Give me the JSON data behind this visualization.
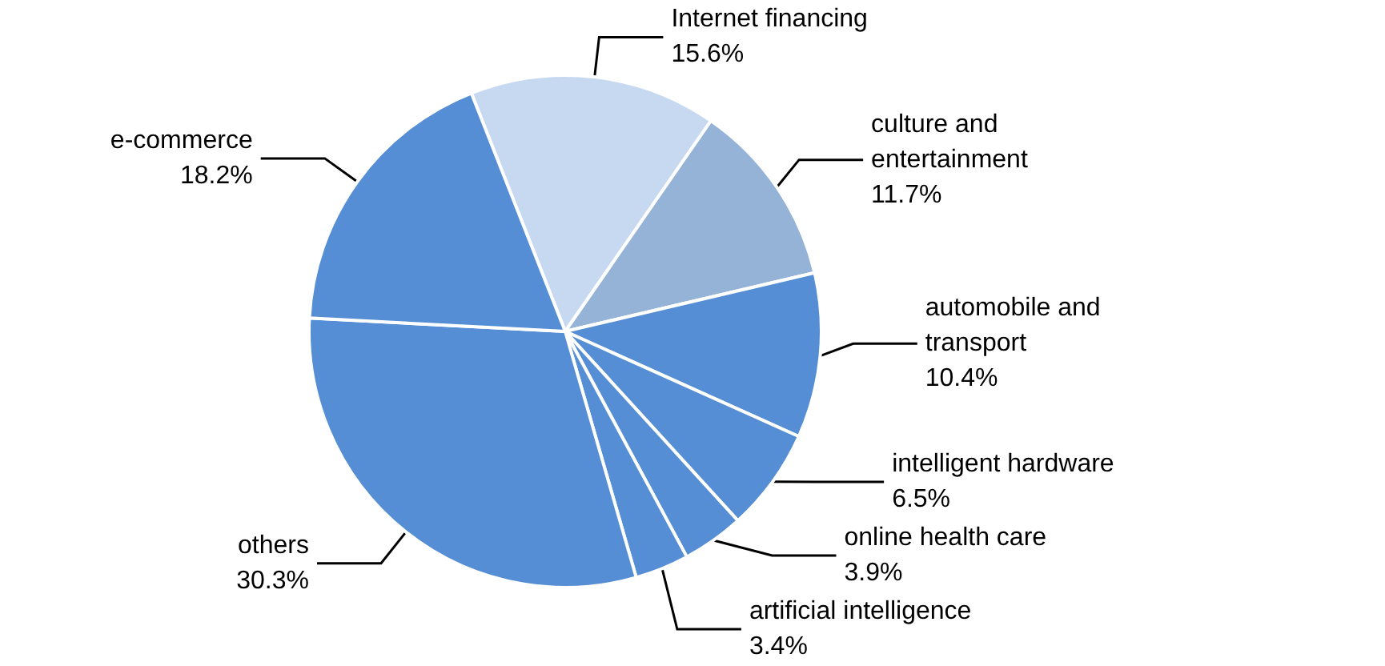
{
  "chart_data": {
    "type": "pie",
    "categories": [
      "Internet financing",
      "culture and entertainment",
      "automobile and transport",
      "intelligent hardware",
      "online health care",
      "artificial intelligence",
      "others",
      "e-commerce"
    ],
    "values": [
      15.6,
      11.7,
      10.4,
      6.5,
      3.9,
      3.4,
      30.3,
      18.2
    ],
    "value_labels": [
      "15.6%",
      "11.7%",
      "10.4%",
      "6.5%",
      "3.9%",
      "3.4%",
      "30.3%",
      "18.2%"
    ],
    "colors": [
      "#c6d9f1",
      "#95b3d7",
      "#558ed5",
      "#558ed5",
      "#558ed5",
      "#558ed5",
      "#558ed5",
      "#558ed5"
    ],
    "legend": false
  }
}
